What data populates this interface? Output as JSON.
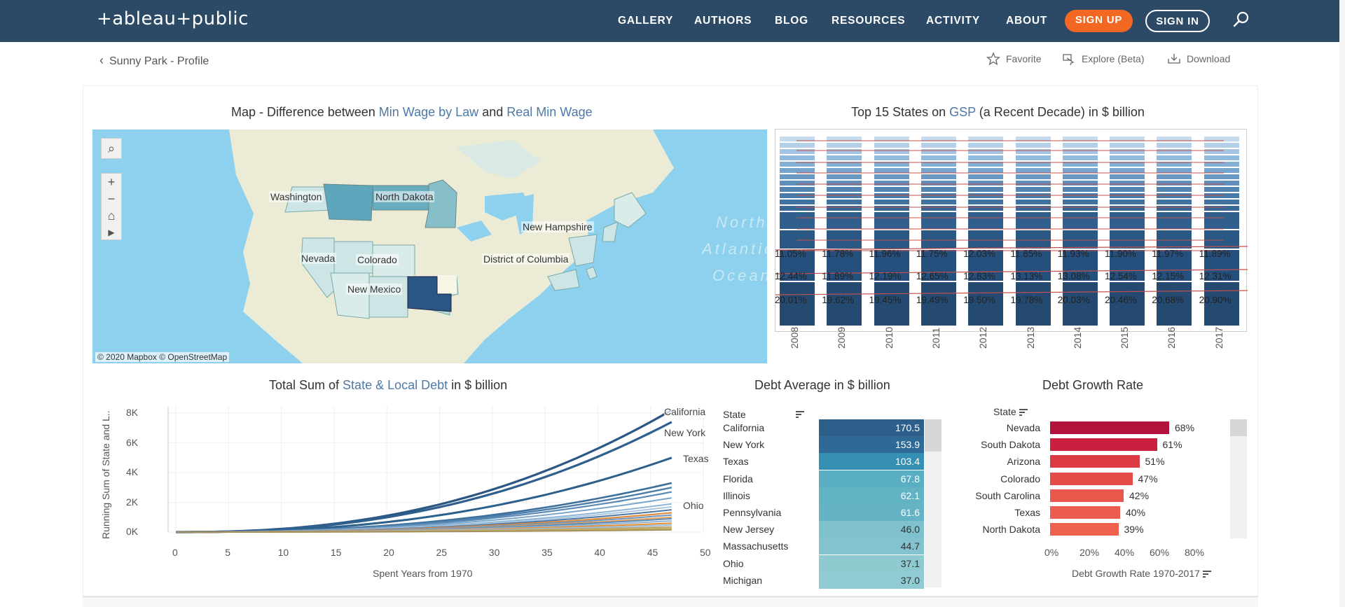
{
  "nav": {
    "logo": "+ableau+public",
    "links": [
      "GALLERY",
      "AUTHORS",
      "BLOG",
      "RESOURCES",
      "ACTIVITY",
      "ABOUT"
    ],
    "signup": "SIGN UP",
    "signin": "SIGN IN"
  },
  "subbar": {
    "back": "Sunny Park - Profile",
    "favorite": "Favorite",
    "explore": "Explore (Beta)",
    "download": "Download"
  },
  "map": {
    "title_pre": "Map - Difference between ",
    "title_a": "Min Wage by Law",
    "title_mid": " and ",
    "title_b": "Real Min Wage",
    "labels": [
      "Washington",
      "North Dakota",
      "New Hampshire",
      "Nevada",
      "Colorado",
      "District of Columbia",
      "New Mexico"
    ],
    "ocean": [
      "North",
      "Atlantic",
      "Ocean"
    ],
    "credit": "© 2020 Mapbox  © OpenStreetMap"
  },
  "gsp": {
    "title_pre": "Top 15 States on ",
    "title_hl": "GSP",
    "title_post": " (a Recent Decade) in $ billion",
    "years": [
      "2008",
      "2009",
      "2010",
      "2011",
      "2012",
      "2013",
      "2014",
      "2015",
      "2016",
      "2017"
    ],
    "row1": [
      "11.05%",
      "11.78%",
      "11.96%",
      "11.75%",
      "12.03%",
      "11.85%",
      "11.93%",
      "11.90%",
      "11.97%",
      "11.89%"
    ],
    "row2": [
      "12.44%",
      "11.89%",
      "12.19%",
      "12.65%",
      "12.83%",
      "13.13%",
      "13.08%",
      "12.54%",
      "12.15%",
      "12.31%"
    ],
    "row3": [
      "20.01%",
      "19.62%",
      "19.45%",
      "19.49%",
      "19.50%",
      "19.78%",
      "20.03%",
      "20.46%",
      "20.68%",
      "20.90%"
    ]
  },
  "debt": {
    "title_pre": "Total Sum of ",
    "title_hl": "State & Local Debt",
    "title_post": " in $ billion",
    "ylabel": "Running Sum of State and L..",
    "xlabel": "Spent Years from 1970",
    "yticks": [
      "8K",
      "6K",
      "4K",
      "2K",
      "0K"
    ],
    "xticks": [
      "0",
      "5",
      "10",
      "15",
      "20",
      "25",
      "30",
      "35",
      "40",
      "45",
      "50"
    ],
    "series_labels": [
      "California",
      "New York",
      "Texas",
      "Ohio"
    ]
  },
  "avg": {
    "title": "Debt Average in $ billion",
    "header": "State",
    "rows": [
      {
        "state": "California",
        "value": "170.5",
        "color": "#2d5f8b"
      },
      {
        "state": "New York",
        "value": "153.9",
        "color": "#2f6a96"
      },
      {
        "state": "Texas",
        "value": "103.4",
        "color": "#3590b3"
      },
      {
        "state": "Florida",
        "value": "67.8",
        "color": "#5aaec2"
      },
      {
        "state": "Illinois",
        "value": "62.1",
        "color": "#62b3c4"
      },
      {
        "state": "Pennsylvania",
        "value": "61.6",
        "color": "#65b4c5"
      },
      {
        "state": "New Jersey",
        "value": "46.0",
        "color": "#7fc1cc"
      },
      {
        "state": "Massachusetts",
        "value": "44.7",
        "color": "#83c3ce"
      },
      {
        "state": "Ohio",
        "value": "37.1",
        "color": "#8fcad1"
      },
      {
        "state": "Michigan",
        "value": "37.0",
        "color": "#90cad2"
      }
    ]
  },
  "growth": {
    "title": "Debt Growth Rate",
    "header": "State",
    "xlabel": "Debt Growth Rate 1970-2017",
    "xticks": [
      "0%",
      "20%",
      "40%",
      "60%",
      "80%"
    ],
    "rows": [
      {
        "state": "Nevada",
        "value": 68,
        "label": "68%",
        "color": "#b2123b"
      },
      {
        "state": "South Dakota",
        "value": 61,
        "label": "61%",
        "color": "#c8203e"
      },
      {
        "state": "Arizona",
        "value": 51,
        "label": "51%",
        "color": "#dc3a43"
      },
      {
        "state": "Colorado",
        "value": 47,
        "label": "47%",
        "color": "#e44c47"
      },
      {
        "state": "South Carolina",
        "value": 42,
        "label": "42%",
        "color": "#ea574c"
      },
      {
        "state": "Texas",
        "value": 40,
        "label": "40%",
        "color": "#ec5c4e"
      },
      {
        "state": "North Dakota",
        "value": 39,
        "label": "39%",
        "color": "#ee614f"
      }
    ]
  }
}
